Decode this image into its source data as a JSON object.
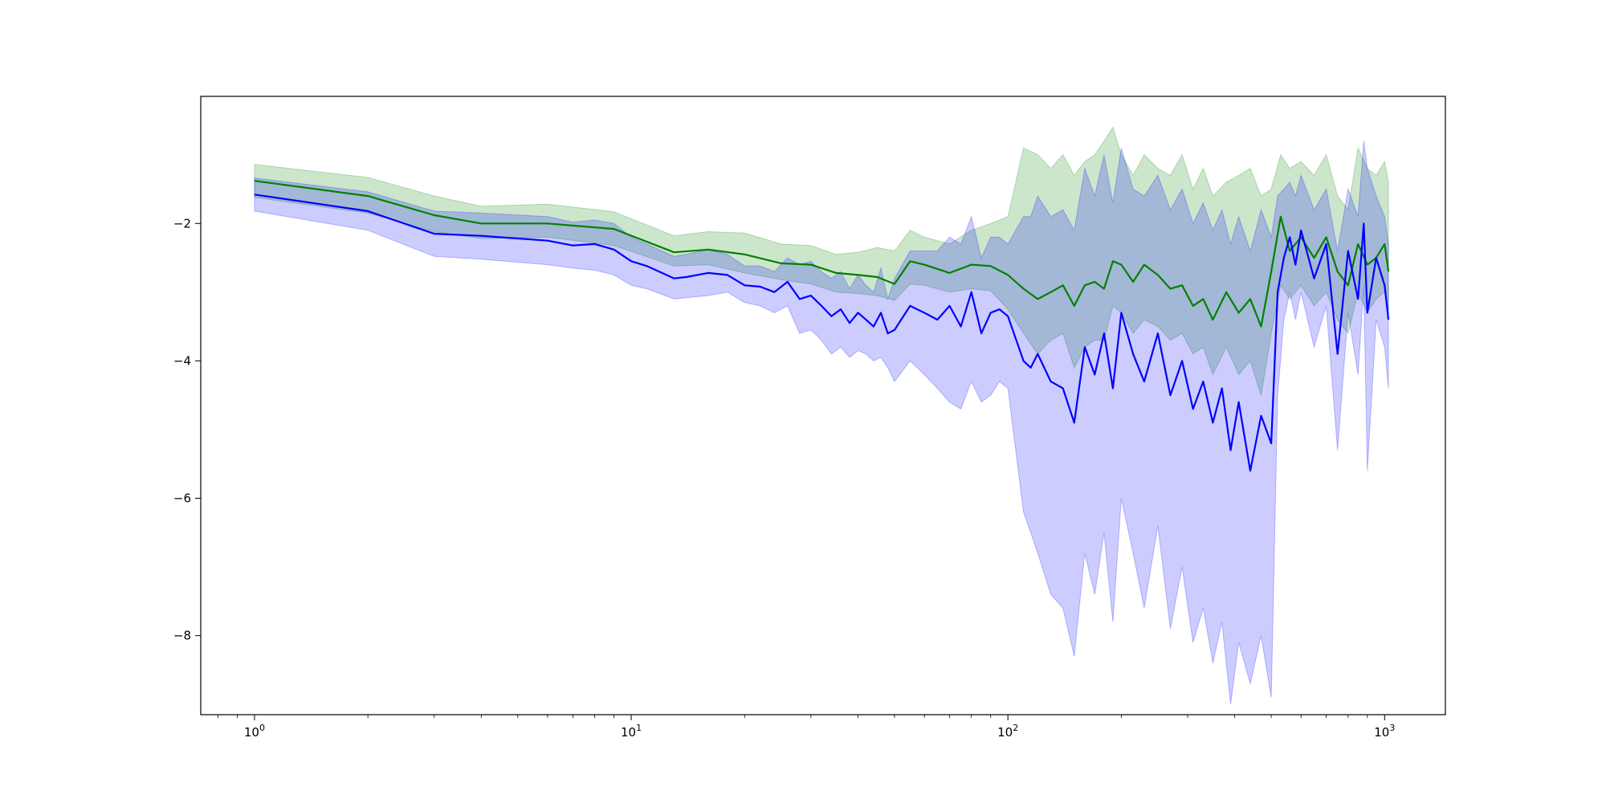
{
  "chart_data": {
    "type": "line",
    "title": "",
    "xlabel": "",
    "ylabel": "",
    "x_scale": "log",
    "xlim": [
      0.72,
      1450
    ],
    "ylim": [
      -9.15,
      -0.15
    ],
    "grid": false,
    "legend": "none",
    "x_tick_values": [
      1,
      10,
      100,
      1000
    ],
    "x_tick_labels": [
      {
        "base": "10",
        "exp": "0"
      },
      {
        "base": "10",
        "exp": "1"
      },
      {
        "base": "10",
        "exp": "2"
      },
      {
        "base": "10",
        "exp": "3"
      }
    ],
    "y_tick_values": [
      -2,
      -4,
      -6,
      -8
    ],
    "y_tick_labels": [
      "−2",
      "−4",
      "−6",
      "−8"
    ],
    "series": [
      {
        "color": "#008000",
        "band_color": "#008000",
        "band_opacity": 0.2,
        "x": [
          1,
          2,
          3,
          4,
          6,
          9,
          13,
          16,
          20,
          25,
          30,
          35,
          40,
          45,
          50,
          55,
          60,
          70,
          80,
          90,
          100,
          110,
          120,
          130,
          140,
          150,
          160,
          170,
          180,
          190,
          200,
          215,
          230,
          250,
          270,
          290,
          310,
          330,
          350,
          380,
          410,
          440,
          470,
          500,
          530,
          560,
          600,
          650,
          700,
          750,
          800,
          850,
          900,
          950,
          1000,
          1024
        ],
        "y": [
          -1.38,
          -1.6,
          -1.88,
          -2.0,
          -2.0,
          -2.08,
          -2.42,
          -2.38,
          -2.45,
          -2.58,
          -2.6,
          -2.72,
          -2.75,
          -2.78,
          -2.88,
          -2.55,
          -2.6,
          -2.72,
          -2.6,
          -2.62,
          -2.75,
          -2.95,
          -3.1,
          -3.0,
          -2.9,
          -3.2,
          -2.9,
          -2.85,
          -2.95,
          -2.55,
          -2.6,
          -2.85,
          -2.6,
          -2.75,
          -2.95,
          -2.9,
          -3.2,
          -3.1,
          -3.4,
          -3.0,
          -3.3,
          -3.1,
          -3.5,
          -2.7,
          -1.9,
          -2.4,
          -2.2,
          -2.5,
          -2.2,
          -2.7,
          -2.9,
          -2.3,
          -2.6,
          -2.5,
          -2.3,
          -2.7
        ],
        "lower": [
          -1.62,
          -1.85,
          -2.12,
          -2.22,
          -2.2,
          -2.32,
          -2.62,
          -2.6,
          -2.72,
          -2.82,
          -2.88,
          -3.0,
          -3.02,
          -3.05,
          -3.12,
          -2.88,
          -2.9,
          -3.0,
          -2.95,
          -2.98,
          -3.25,
          -3.6,
          -3.9,
          -3.7,
          -3.6,
          -4.1,
          -3.8,
          -3.7,
          -3.7,
          -3.2,
          -3.3,
          -3.6,
          -3.4,
          -3.5,
          -3.7,
          -3.6,
          -3.9,
          -3.8,
          -4.2,
          -3.8,
          -4.2,
          -4.0,
          -4.5,
          -3.6,
          -2.9,
          -3.1,
          -2.9,
          -3.2,
          -3.0,
          -3.4,
          -3.6,
          -3.0,
          -3.3,
          -3.1,
          -3.0,
          -3.3
        ],
        "upper": [
          -1.14,
          -1.33,
          -1.6,
          -1.75,
          -1.72,
          -1.83,
          -2.18,
          -2.12,
          -2.14,
          -2.3,
          -2.32,
          -2.45,
          -2.42,
          -2.35,
          -2.4,
          -2.1,
          -2.2,
          -2.3,
          -2.1,
          -2.0,
          -1.9,
          -0.9,
          -1.0,
          -1.2,
          -1.0,
          -1.3,
          -1.1,
          -1.0,
          -0.8,
          -0.6,
          -1.0,
          -1.3,
          -1.0,
          -1.2,
          -1.3,
          -1.0,
          -1.5,
          -1.2,
          -1.6,
          -1.4,
          -1.3,
          -1.2,
          -1.6,
          -1.5,
          -1.0,
          -1.2,
          -1.1,
          -1.3,
          -1.0,
          -1.6,
          -1.8,
          -0.9,
          -1.2,
          -1.3,
          -1.1,
          -1.4
        ]
      },
      {
        "color": "#0000ff",
        "band_color": "#0000ff",
        "band_opacity": 0.2,
        "x": [
          1,
          2,
          3,
          4,
          6,
          7,
          8,
          9,
          10,
          11,
          13,
          14,
          16,
          18,
          20,
          22,
          24,
          26,
          28,
          30,
          32,
          34,
          36,
          38,
          40,
          42,
          44,
          46,
          48,
          50,
          55,
          60,
          65,
          70,
          75,
          80,
          85,
          90,
          95,
          100,
          110,
          115,
          120,
          130,
          140,
          150,
          160,
          170,
          180,
          190,
          200,
          215,
          230,
          250,
          270,
          290,
          310,
          330,
          350,
          370,
          390,
          410,
          440,
          470,
          500,
          520,
          540,
          560,
          580,
          600,
          650,
          700,
          750,
          800,
          850,
          880,
          900,
          950,
          1000,
          1024
        ],
        "y": [
          -1.58,
          -1.82,
          -2.15,
          -2.18,
          -2.25,
          -2.32,
          -2.3,
          -2.38,
          -2.55,
          -2.62,
          -2.8,
          -2.78,
          -2.72,
          -2.75,
          -2.9,
          -2.92,
          -3.0,
          -2.85,
          -3.1,
          -3.05,
          -3.2,
          -3.35,
          -3.25,
          -3.45,
          -3.3,
          -3.4,
          -3.5,
          -3.3,
          -3.6,
          -3.55,
          -3.2,
          -3.3,
          -3.4,
          -3.2,
          -3.5,
          -3.0,
          -3.6,
          -3.3,
          -3.25,
          -3.35,
          -4.0,
          -4.1,
          -3.9,
          -4.3,
          -4.4,
          -4.9,
          -3.8,
          -4.2,
          -3.6,
          -4.4,
          -3.3,
          -3.9,
          -4.3,
          -3.6,
          -4.5,
          -4.0,
          -4.7,
          -4.3,
          -4.9,
          -4.4,
          -5.3,
          -4.6,
          -5.6,
          -4.8,
          -5.2,
          -3.0,
          -2.5,
          -2.2,
          -2.6,
          -2.1,
          -2.8,
          -2.3,
          -3.9,
          -2.4,
          -3.1,
          -2.0,
          -3.3,
          -2.5,
          -2.9,
          -3.4
        ],
        "lower": [
          -1.82,
          -2.1,
          -2.48,
          -2.52,
          -2.6,
          -2.65,
          -2.68,
          -2.75,
          -2.9,
          -2.95,
          -3.1,
          -3.08,
          -3.05,
          -3.0,
          -3.15,
          -3.2,
          -3.3,
          -3.2,
          -3.6,
          -3.55,
          -3.7,
          -3.9,
          -3.8,
          -3.95,
          -3.85,
          -3.9,
          -4.0,
          -3.95,
          -4.1,
          -4.3,
          -4.0,
          -4.2,
          -4.4,
          -4.6,
          -4.7,
          -4.3,
          -4.6,
          -4.5,
          -4.3,
          -4.4,
          -6.2,
          -6.5,
          -6.8,
          -7.4,
          -7.6,
          -8.3,
          -6.8,
          -7.4,
          -6.5,
          -7.8,
          -6.0,
          -6.8,
          -7.6,
          -6.4,
          -7.9,
          -7.0,
          -8.1,
          -7.6,
          -8.4,
          -7.8,
          -9.0,
          -8.1,
          -8.7,
          -8.0,
          -8.9,
          -4.5,
          -3.4,
          -3.0,
          -3.4,
          -3.0,
          -3.8,
          -3.2,
          -5.3,
          -3.3,
          -4.2,
          -2.9,
          -5.6,
          -3.4,
          -3.8,
          -4.4
        ],
        "upper": [
          -1.34,
          -1.54,
          -1.82,
          -1.85,
          -1.9,
          -1.98,
          -1.95,
          -2.0,
          -2.2,
          -2.3,
          -2.48,
          -2.45,
          -2.38,
          -2.45,
          -2.62,
          -2.62,
          -2.7,
          -2.5,
          -2.6,
          -2.55,
          -2.7,
          -2.8,
          -2.7,
          -2.95,
          -2.75,
          -2.9,
          -3.0,
          -2.65,
          -3.1,
          -2.8,
          -2.4,
          -2.4,
          -2.4,
          -2.2,
          -2.3,
          -1.9,
          -2.5,
          -2.2,
          -2.2,
          -2.3,
          -1.9,
          -1.9,
          -1.6,
          -1.9,
          -1.8,
          -2.1,
          -1.2,
          -1.6,
          -1.0,
          -1.7,
          -0.9,
          -1.5,
          -1.6,
          -1.3,
          -1.8,
          -1.5,
          -2.0,
          -1.7,
          -2.1,
          -1.8,
          -2.3,
          -1.9,
          -2.4,
          -1.8,
          -2.2,
          -1.6,
          -1.5,
          -1.4,
          -1.6,
          -1.3,
          -1.8,
          -1.5,
          -2.4,
          -1.5,
          -1.9,
          -0.8,
          -1.2,
          -1.6,
          -1.9,
          -2.3
        ]
      }
    ]
  }
}
